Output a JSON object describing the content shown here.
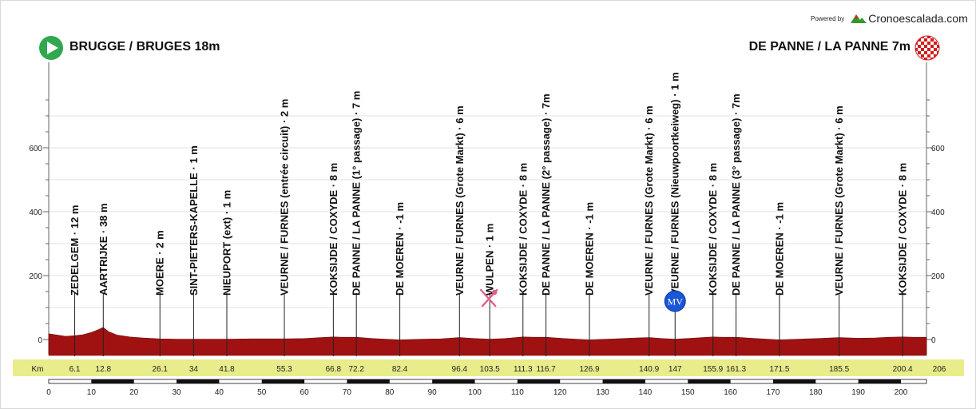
{
  "branding": {
    "powered_by": "Powered by",
    "brand_name": "Cronoescalada.com",
    "brand_icon": "mountain-logo-icon"
  },
  "header": {
    "start_label": "BRUGGE / BRUGES 18m",
    "end_label": "DE PANNE / LA PANNE 7m",
    "start_icon": "start-play-icon",
    "finish_icon": "checkered-flag-icon"
  },
  "colors": {
    "profile_fill": "#a01212",
    "km_band": "#e8ec8a",
    "grid": "#e2e2e2",
    "marker_line": "#222222",
    "mv_badge": "#1a56d6"
  },
  "chart_data": {
    "type": "area",
    "title": "",
    "xlabel": "",
    "ylabel": "",
    "xlim": [
      0,
      206
    ],
    "ylim": [
      0,
      800
    ],
    "grid": true,
    "y_ticks": [
      0,
      200,
      400,
      600
    ],
    "y_tick_labels": [
      "0",
      "200",
      "400",
      "600"
    ],
    "x_ticks": [
      0,
      10,
      20,
      30,
      40,
      50,
      60,
      70,
      80,
      90,
      100,
      110,
      120,
      130,
      140,
      150,
      160,
      170,
      180,
      190,
      200
    ],
    "x_tick_labels": [
      "0",
      "10",
      "20",
      "30",
      "40",
      "50",
      "60",
      "70",
      "80",
      "90",
      "100",
      "110",
      "120",
      "130",
      "140",
      "150",
      "160",
      "170",
      "180",
      "190",
      "200"
    ],
    "km_row_label": "Km",
    "total_km_label": "206",
    "profile": {
      "x": [
        0,
        2,
        4,
        6.1,
        8,
        10,
        11.5,
        12.8,
        14,
        16,
        19,
        22,
        26.1,
        30,
        34,
        41.8,
        48,
        55.3,
        60,
        64,
        66.8,
        69,
        72.2,
        76,
        82.4,
        88,
        92,
        96.4,
        100,
        103.5,
        107,
        111.3,
        114,
        116.7,
        121,
        126.9,
        133,
        138,
        140.9,
        144,
        147,
        151,
        155.9,
        158,
        161.3,
        166,
        171.5,
        178,
        182,
        185.5,
        190,
        194,
        197,
        200.4,
        203,
        206
      ],
      "y": [
        18,
        14,
        10,
        12,
        15,
        22,
        30,
        38,
        25,
        14,
        8,
        5,
        2,
        1,
        1,
        1,
        2,
        2,
        3,
        6,
        8,
        7,
        7,
        3,
        -1,
        1,
        2,
        6,
        3,
        1,
        3,
        8,
        7,
        7,
        3,
        -1,
        2,
        5,
        6,
        3,
        1,
        4,
        8,
        7,
        7,
        3,
        -1,
        2,
        4,
        6,
        4,
        5,
        7,
        8,
        7,
        7
      ]
    },
    "waypoints": [
      {
        "km": 6.1,
        "km_label": "6.1",
        "label": "ZEDELGEM · 12 m",
        "elevation": 12
      },
      {
        "km": 12.8,
        "km_label": "12.8",
        "label": "AARTRIJKE · 38 m",
        "elevation": 38
      },
      {
        "km": 26.1,
        "km_label": "26.1",
        "label": "MOERE · 2 m",
        "elevation": 2
      },
      {
        "km": 34,
        "km_label": "34",
        "label": "SINT-PIETERS-KAPELLE · 1 m",
        "elevation": 1
      },
      {
        "km": 41.8,
        "km_label": "41.8",
        "label": "NIEUPORT (ext) · 1 m",
        "elevation": 1
      },
      {
        "km": 55.3,
        "km_label": "55.3",
        "label": "VEURNE / FURNES (entrée circuit) · 2 m",
        "elevation": 2
      },
      {
        "km": 66.8,
        "km_label": "66.8",
        "label": "KOKSIJDE / COXYDE · 8 m",
        "elevation": 8
      },
      {
        "km": 72.2,
        "km_label": "72.2",
        "label": "DE PANNE / LA PANNE (1° passage) · 7 m",
        "elevation": 7
      },
      {
        "km": 82.4,
        "km_label": "82.4",
        "label": "DE MOEREN · -1 m",
        "elevation": -1
      },
      {
        "km": 96.4,
        "km_label": "96.4",
        "label": "VEURNE / FURNES (Grote Markt) · 6 m",
        "elevation": 6
      },
      {
        "km": 103.5,
        "km_label": "103.5",
        "label": "WULPEN · 1 m",
        "elevation": 1,
        "icon": "feed-zone-icon"
      },
      {
        "km": 111.3,
        "km_label": "111.3",
        "label": "KOKSIJDE / COXYDE · 8 m",
        "elevation": 8
      },
      {
        "km": 116.7,
        "km_label": "116.7",
        "label": "DE PANNE / LA PANNE (2° passage) · 7m",
        "elevation": 7
      },
      {
        "km": 126.9,
        "km_label": "126.9",
        "label": "DE MOEREN · -1 m",
        "elevation": -1
      },
      {
        "km": 140.9,
        "km_label": "140.9",
        "label": "VEURNE / FURNES (Grote Markt) · 6 m",
        "elevation": 6
      },
      {
        "km": 147,
        "km_label": "147",
        "label": "VEURNE / FURNES (Nieuwpoortkeiweg) · 1 m",
        "elevation": 1,
        "badge": "MV"
      },
      {
        "km": 155.9,
        "km_label": "155.9",
        "label": "KOKSIJDE / COXYDE · 8 m",
        "elevation": 8
      },
      {
        "km": 161.3,
        "km_label": "161.3",
        "label": "DE PANNE / LA PANNE (3° passage) · 7m",
        "elevation": 7
      },
      {
        "km": 171.5,
        "km_label": "171.5",
        "label": "DE MOEREN · -1 m",
        "elevation": -1
      },
      {
        "km": 185.5,
        "km_label": "185.5",
        "label": "VEURNE / FURNES (Grote Markt) · 6 m",
        "elevation": 6
      },
      {
        "km": 200.4,
        "km_label": "200.4",
        "label": "KOKSIJDE / COXYDE · 8 m",
        "elevation": 8
      }
    ]
  }
}
